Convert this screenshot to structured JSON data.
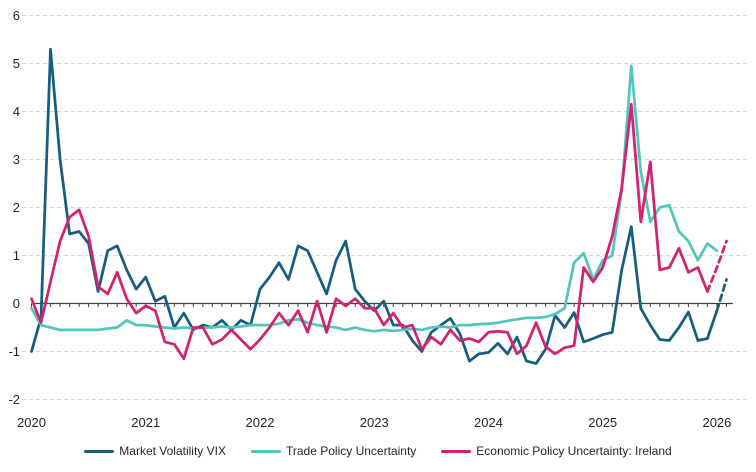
{
  "chart_data": {
    "type": "line",
    "title": "",
    "x_start": "2020-01",
    "x_frequency": "monthly",
    "x_tick_labels": [
      "2020",
      "2021",
      "2022",
      "2023",
      "2024",
      "2025",
      "2026"
    ],
    "y_ticks": [
      6,
      5,
      4,
      3,
      2,
      1,
      0,
      -1,
      -2
    ],
    "ylim": [
      -2,
      6
    ],
    "grid": "horizontal-dashed",
    "legend_position": "bottom",
    "series": [
      {
        "name": "Market Volatility VIX",
        "color": "#175E7E",
        "dash_from_index": 72,
        "values": [
          -1.0,
          -0.3,
          5.3,
          3.0,
          1.45,
          1.5,
          1.25,
          0.25,
          1.1,
          1.2,
          0.7,
          0.3,
          0.55,
          0.05,
          0.15,
          -0.5,
          -0.2,
          -0.55,
          -0.45,
          -0.5,
          -0.35,
          -0.55,
          -0.35,
          -0.45,
          0.3,
          0.55,
          0.85,
          0.5,
          1.2,
          1.1,
          0.65,
          0.2,
          0.9,
          1.3,
          0.3,
          0.05,
          -0.15,
          0.05,
          -0.45,
          -0.45,
          -0.77,
          -1.0,
          -0.6,
          -0.45,
          -0.31,
          -0.63,
          -1.2,
          -1.05,
          -1.02,
          -0.83,
          -1.05,
          -0.7,
          -1.2,
          -1.25,
          -0.95,
          -0.25,
          -0.5,
          -0.19,
          -0.8,
          -0.73,
          -0.65,
          -0.6,
          0.7,
          1.6,
          -0.1,
          -0.45,
          -0.75,
          -0.77,
          -0.5,
          -0.18,
          -0.77,
          -0.73,
          -0.15,
          0.5
        ]
      },
      {
        "name": "Trade Policy Uncertainty",
        "color": "#53C6BC",
        "dash_from_index": null,
        "values": [
          -0.1,
          -0.45,
          -0.5,
          -0.55,
          -0.55,
          -0.55,
          -0.55,
          -0.55,
          -0.52,
          -0.5,
          -0.35,
          -0.45,
          -0.45,
          -0.48,
          -0.5,
          -0.52,
          -0.5,
          -0.52,
          -0.5,
          -0.5,
          -0.48,
          -0.5,
          -0.48,
          -0.45,
          -0.45,
          -0.45,
          -0.42,
          -0.35,
          -0.33,
          -0.4,
          -0.45,
          -0.48,
          -0.5,
          -0.55,
          -0.5,
          -0.55,
          -0.58,
          -0.55,
          -0.57,
          -0.55,
          -0.53,
          -0.55,
          -0.5,
          -0.48,
          -0.5,
          -0.45,
          -0.45,
          -0.43,
          -0.42,
          -0.4,
          -0.36,
          -0.33,
          -0.3,
          -0.3,
          -0.28,
          -0.22,
          -0.1,
          0.85,
          1.05,
          0.5,
          0.9,
          1.0,
          2.35,
          4.95,
          2.75,
          1.7,
          2.0,
          2.05,
          1.5,
          1.3,
          0.9,
          1.25,
          1.1
        ]
      },
      {
        "name": "Economic Policy Uncertainty: Ireland",
        "color": "#D3226E",
        "dash_from_index": 71,
        "values": [
          0.1,
          -0.4,
          0.45,
          1.3,
          1.8,
          1.95,
          1.4,
          0.35,
          0.2,
          0.65,
          0.1,
          -0.2,
          -0.05,
          -0.15,
          -0.8,
          -0.85,
          -1.15,
          -0.5,
          -0.5,
          -0.85,
          -0.75,
          -0.55,
          -0.75,
          -0.95,
          -0.75,
          -0.5,
          -0.2,
          -0.45,
          -0.15,
          -0.6,
          0.05,
          -0.6,
          0.1,
          -0.05,
          0.1,
          -0.1,
          -0.1,
          -0.45,
          -0.2,
          -0.5,
          -0.45,
          -0.95,
          -0.7,
          -0.85,
          -0.55,
          -0.77,
          -0.73,
          -0.8,
          -0.6,
          -0.58,
          -0.6,
          -1.05,
          -0.88,
          -0.4,
          -0.9,
          -1.05,
          -0.92,
          -0.88,
          0.75,
          0.45,
          0.75,
          1.4,
          2.4,
          4.15,
          1.7,
          2.95,
          0.7,
          0.75,
          1.15,
          0.65,
          0.75,
          0.25,
          0.75,
          1.3
        ]
      }
    ]
  },
  "colors": {
    "background": "#FFFFFF",
    "gridline": "#D9D9D9",
    "axis": "#404040",
    "text": "#262626"
  },
  "legend": {
    "item1": "Market Volatility VIX",
    "item2": "Trade Policy Uncertainty",
    "item3": "Economic Policy Uncertainty: Ireland"
  }
}
